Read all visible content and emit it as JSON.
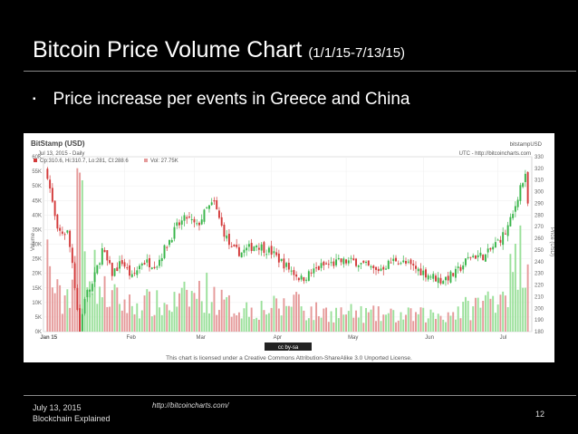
{
  "slide": {
    "title": "Bitcoin Price Volume Chart",
    "title_range": "(1/1/15-7/13/15)",
    "bullet_mark": "▪",
    "bullet": "Price increase per events in Greece and China",
    "footer_date": "July 13, 2015",
    "footer_subtitle": "Blockchain Explained",
    "footer_url": "http://bitcoincharts.com/",
    "page_number": "12"
  },
  "colors": {
    "up": "#39b54a",
    "down": "#d33a3a",
    "vol_up": "#9be09b",
    "vol_down": "#e59a9a"
  },
  "chart_data": {
    "type": "candlestick",
    "title": "BitStamp (USD)",
    "symbol": "bitstampUSD",
    "date_line": "Jul 13, 2015 - Daily",
    "utc_line": "UTC - http://bitcoincharts.com",
    "ohlc_legend": "Op:310.6, Hi:310.7, Lo:281, Cl:288.6",
    "vol_legend": "Vol: 27.75K",
    "license_badge": "cc by-sa",
    "license_text": "This chart is licensed under a Creative Commons Attribution-ShareAlike 3.0 Unported License.",
    "x_ticks": [
      "Jan 15",
      "Feb",
      "Mar",
      "Apr",
      "May",
      "Jun",
      "Jul"
    ],
    "y_left_label": "Volume",
    "y_left_ticks": [
      "60K",
      "55K",
      "50K",
      "45K",
      "40K",
      "35K",
      "30K",
      "25K",
      "20K",
      "15K",
      "10K",
      "5K",
      "0K"
    ],
    "y_left_range": [
      0,
      60000
    ],
    "y_right_label": "Price (USD)",
    "y_right_ticks": [
      "330",
      "320",
      "310",
      "300",
      "290",
      "280",
      "270",
      "260",
      "250",
      "240",
      "230",
      "220",
      "210",
      "200",
      "190",
      "180"
    ],
    "y_right_range": [
      180,
      330
    ],
    "price_close_keyframes": [
      {
        "day": 0,
        "close": 315
      },
      {
        "day": 2,
        "close": 290
      },
      {
        "day": 4,
        "close": 265
      },
      {
        "day": 8,
        "close": 265
      },
      {
        "day": 10,
        "close": 240
      },
      {
        "day": 12,
        "close": 200
      },
      {
        "day": 13,
        "close": 180
      },
      {
        "day": 15,
        "close": 210
      },
      {
        "day": 18,
        "close": 220
      },
      {
        "day": 22,
        "close": 250
      },
      {
        "day": 26,
        "close": 230
      },
      {
        "day": 30,
        "close": 240
      },
      {
        "day": 34,
        "close": 226
      },
      {
        "day": 38,
        "close": 240
      },
      {
        "day": 44,
        "close": 238
      },
      {
        "day": 48,
        "close": 255
      },
      {
        "day": 52,
        "close": 270
      },
      {
        "day": 56,
        "close": 278
      },
      {
        "day": 60,
        "close": 270
      },
      {
        "day": 64,
        "close": 285
      },
      {
        "day": 67,
        "close": 290
      },
      {
        "day": 70,
        "close": 270
      },
      {
        "day": 74,
        "close": 250
      },
      {
        "day": 78,
        "close": 248
      },
      {
        "day": 84,
        "close": 255
      },
      {
        "day": 90,
        "close": 248
      },
      {
        "day": 96,
        "close": 236
      },
      {
        "day": 102,
        "close": 225
      },
      {
        "day": 110,
        "close": 236
      },
      {
        "day": 118,
        "close": 240
      },
      {
        "day": 124,
        "close": 240
      },
      {
        "day": 132,
        "close": 232
      },
      {
        "day": 140,
        "close": 242
      },
      {
        "day": 146,
        "close": 236
      },
      {
        "day": 152,
        "close": 230
      },
      {
        "day": 158,
        "close": 224
      },
      {
        "day": 164,
        "close": 230
      },
      {
        "day": 170,
        "close": 245
      },
      {
        "day": 176,
        "close": 245
      },
      {
        "day": 180,
        "close": 255
      },
      {
        "day": 184,
        "close": 265
      },
      {
        "day": 187,
        "close": 280
      },
      {
        "day": 190,
        "close": 305
      },
      {
        "day": 192,
        "close": 312
      },
      {
        "day": 193,
        "close": 289
      }
    ],
    "volume_keyframes": [
      {
        "day": 0,
        "volume": 26000
      },
      {
        "day": 3,
        "volume": 14000
      },
      {
        "day": 6,
        "volume": 10000
      },
      {
        "day": 10,
        "volume": 18000
      },
      {
        "day": 12,
        "volume": 40000
      },
      {
        "day": 13,
        "volume": 55000
      },
      {
        "day": 15,
        "volume": 32000
      },
      {
        "day": 18,
        "volume": 22000
      },
      {
        "day": 22,
        "volume": 14000
      },
      {
        "day": 28,
        "volume": 11000
      },
      {
        "day": 34,
        "volume": 9000
      },
      {
        "day": 40,
        "volume": 10000
      },
      {
        "day": 48,
        "volume": 9000
      },
      {
        "day": 56,
        "volume": 12000
      },
      {
        "day": 64,
        "volume": 14000
      },
      {
        "day": 72,
        "volume": 9000
      },
      {
        "day": 80,
        "volume": 8000
      },
      {
        "day": 95,
        "volume": 8500
      },
      {
        "day": 100,
        "volume": 13000
      },
      {
        "day": 104,
        "volume": 7000
      },
      {
        "day": 120,
        "volume": 6500
      },
      {
        "day": 140,
        "volume": 5500
      },
      {
        "day": 160,
        "volume": 6000
      },
      {
        "day": 175,
        "volume": 10000
      },
      {
        "day": 183,
        "volume": 15000
      },
      {
        "day": 188,
        "volume": 22000
      },
      {
        "day": 191,
        "volume": 30000
      },
      {
        "day": 193,
        "volume": 27750
      }
    ],
    "days": 194
  }
}
